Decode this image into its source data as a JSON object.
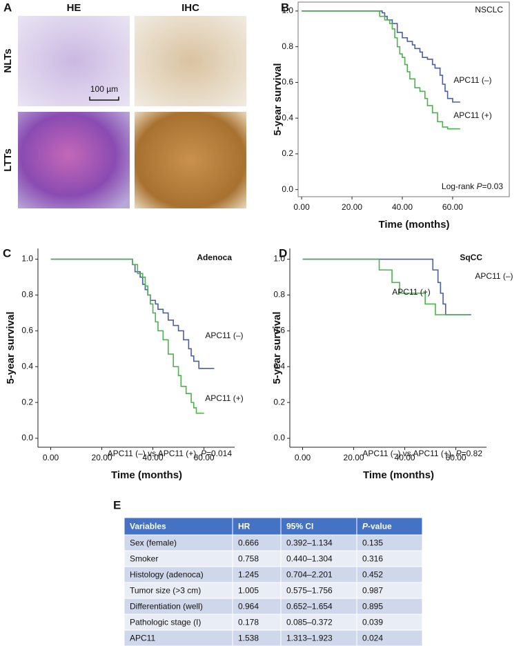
{
  "panel_a": {
    "label": "A",
    "columns": [
      "HE",
      "IHC"
    ],
    "rows": [
      "NLTs",
      "LTTs"
    ],
    "scale_bar": "100 µm"
  },
  "chart_data": [
    {
      "type": "line",
      "step": true,
      "label": "B",
      "title": "NSCLC",
      "title_bold": false,
      "frame": true,
      "ylabel": "5-year survival",
      "xlabel": "Time (months)",
      "note": [
        {
          "text": "Log-rank "
        },
        {
          "text": "P",
          "italic": true
        },
        {
          "text": "=0.03"
        }
      ],
      "xlim": [
        -1.4,
        82.5
      ],
      "ylim": [
        -0.04,
        1.05
      ],
      "xticks": [
        {
          "value": 0,
          "label": "0.00"
        },
        {
          "value": 20,
          "label": "20.00"
        },
        {
          "value": 40,
          "label": "40.00"
        },
        {
          "value": 60,
          "label": "60.00"
        }
      ],
      "yticks": [
        {
          "value": 0,
          "label": "0.0"
        },
        0.2,
        0.4,
        0.6,
        0.8,
        {
          "value": 1,
          "label": "1.0"
        }
      ],
      "series": [
        {
          "name": "APC11 (–)",
          "color": "#4a5ea8",
          "x": [
            0,
            32,
            33,
            34,
            36,
            38,
            40,
            42,
            44,
            45,
            47,
            48,
            50,
            52,
            53,
            55,
            56,
            57,
            58,
            60,
            63
          ],
          "values": [
            1,
            0.99,
            0.97,
            0.95,
            0.93,
            0.88,
            0.85,
            0.83,
            0.81,
            0.79,
            0.77,
            0.74,
            0.73,
            0.7,
            0.68,
            0.64,
            0.59,
            0.55,
            0.51,
            0.49,
            0.49
          ]
        },
        {
          "name": "APC11 (+)",
          "color": "#4cb34c",
          "x": [
            0,
            31,
            33,
            35,
            36,
            37,
            38,
            39,
            40,
            41,
            42,
            43,
            45,
            47,
            49,
            50,
            52,
            54,
            56,
            58,
            63
          ],
          "values": [
            1,
            0.97,
            0.95,
            0.93,
            0.9,
            0.85,
            0.8,
            0.76,
            0.74,
            0.7,
            0.66,
            0.62,
            0.57,
            0.55,
            0.51,
            0.47,
            0.43,
            0.38,
            0.35,
            0.34,
            0.34
          ]
        }
      ]
    },
    {
      "type": "line",
      "step": true,
      "label": "C",
      "title": "Adenoca",
      "title_bold": true,
      "frame": false,
      "ylabel": "5-year survival",
      "xlabel": "Time (months)",
      "note": [
        {
          "text": "APC11 (–) vs APC11 (+), "
        },
        {
          "text": "P",
          "italic": true
        },
        {
          "text": "=0.014"
        }
      ],
      "xlim": [
        -5,
        72
      ],
      "ylim": [
        -0.05,
        1.06
      ],
      "xticks": [
        {
          "value": 0,
          "label": "0.00"
        },
        {
          "value": 20,
          "label": "20.00"
        },
        {
          "value": 40,
          "label": "40.00"
        },
        {
          "value": 60,
          "label": "60.00"
        }
      ],
      "yticks": [
        {
          "value": 0,
          "label": "0.0"
        },
        0.2,
        0.4,
        0.6,
        0.8,
        {
          "value": 1,
          "label": "1.0"
        }
      ],
      "series": [
        {
          "name": "APC11 (–)",
          "color": "#4a5ea8",
          "x": [
            0,
            32,
            33,
            35,
            36,
            37,
            38,
            39,
            41,
            42,
            44,
            46,
            48,
            50,
            52,
            54,
            55,
            56,
            58,
            64
          ],
          "values": [
            1,
            0.97,
            0.93,
            0.9,
            0.86,
            0.83,
            0.8,
            0.77,
            0.75,
            0.72,
            0.7,
            0.66,
            0.63,
            0.6,
            0.55,
            0.5,
            0.46,
            0.43,
            0.39,
            0.39
          ]
        },
        {
          "name": "APC11 (+)",
          "color": "#4cb34c",
          "x": [
            0,
            32,
            34,
            36,
            37,
            38,
            39,
            40,
            41,
            42,
            44,
            46,
            48,
            50,
            51,
            53,
            55,
            56,
            57,
            60
          ],
          "values": [
            1,
            0.97,
            0.92,
            0.9,
            0.85,
            0.8,
            0.75,
            0.7,
            0.65,
            0.6,
            0.55,
            0.47,
            0.4,
            0.35,
            0.29,
            0.25,
            0.2,
            0.17,
            0.14,
            0.14
          ]
        }
      ]
    },
    {
      "type": "line",
      "step": true,
      "label": "D",
      "title": "SqCC",
      "title_bold": true,
      "frame": false,
      "ylabel": "5-year survival",
      "xlabel": "Time (months)",
      "note": [
        {
          "text": "APC11 (–) vs APC11 (+), "
        },
        {
          "text": "P",
          "italic": true
        },
        {
          "text": "=0.82"
        }
      ],
      "xlim": [
        -5,
        72
      ],
      "ylim": [
        -0.05,
        1.06
      ],
      "xticks": [
        {
          "value": 0,
          "label": "0.00"
        },
        {
          "value": 20,
          "label": "20.00"
        },
        {
          "value": 40,
          "label": "40.00"
        },
        {
          "value": 60,
          "label": "60.00"
        }
      ],
      "yticks": [
        {
          "value": 0,
          "label": "0.0"
        },
        0.2,
        0.4,
        0.6,
        0.8,
        {
          "value": 1,
          "label": "1.0"
        }
      ],
      "series": [
        {
          "name": "APC11 (–)",
          "color": "#4a5ea8",
          "x": [
            0,
            51,
            53,
            54,
            55,
            56,
            66
          ],
          "values": [
            1,
            0.94,
            0.87,
            0.81,
            0.75,
            0.69,
            0.69
          ]
        },
        {
          "name": "APC11 (+)",
          "color": "#4cb34c",
          "x": [
            0,
            30,
            35,
            38,
            48,
            52,
            65
          ],
          "values": [
            1,
            0.94,
            0.87,
            0.81,
            0.75,
            0.69,
            0.69
          ]
        }
      ]
    }
  ],
  "table": {
    "label": "E",
    "header": [
      [
        {
          "text": "Variables"
        }
      ],
      [
        {
          "text": "HR"
        }
      ],
      [
        {
          "text": "95% CI"
        }
      ],
      [
        {
          "text": "P",
          "italic": true
        },
        {
          "text": "-value"
        }
      ]
    ],
    "rows": [
      [
        "Sex (female)",
        "0.666",
        "0.392–1.134",
        "0.135"
      ],
      [
        "Smoker",
        "0.758",
        "0.440–1.304",
        "0.316"
      ],
      [
        "Histology (adenoca)",
        "1.245",
        "0.704–2.201",
        "0.452"
      ],
      [
        "Tumor size (>3 cm)",
        "1.005",
        "0.575–1.756",
        "0.987"
      ],
      [
        "Differentiation (well)",
        "0.964",
        "0.652–1.654",
        "0.895"
      ],
      [
        "Pathologic stage (I)",
        "0.178",
        "0.085–0.372",
        "0.039"
      ],
      [
        "APC11",
        "1.538",
        "1.313–1.923",
        "0.024"
      ]
    ]
  }
}
